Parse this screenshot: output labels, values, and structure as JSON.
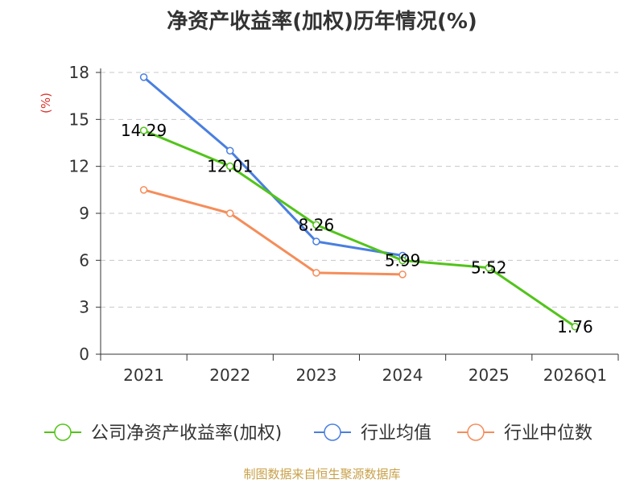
{
  "chart_data": {
    "type": "line",
    "title": "净资产收益率(加权)历年情况(%)",
    "ylabel": "(%)",
    "xlabel": "",
    "ylim": [
      0,
      18
    ],
    "yticks": [
      0,
      3,
      6,
      9,
      12,
      15,
      18
    ],
    "categories": [
      "2021",
      "2022",
      "2023",
      "2024",
      "2025",
      "2026Q1"
    ],
    "legend_position": "bottom",
    "grid": true,
    "series": [
      {
        "name": "公司净资产收益率(加权)",
        "color": "#52c41a",
        "values": [
          14.29,
          12.01,
          8.26,
          5.99,
          5.52,
          1.76
        ],
        "show_labels": true
      },
      {
        "name": "行业均值",
        "color": "#4a7fe0",
        "values": [
          17.7,
          13.0,
          7.2,
          6.3,
          null,
          null
        ],
        "show_labels": false
      },
      {
        "name": "行业中位数",
        "color": "#f58d5a",
        "values": [
          10.5,
          9.0,
          5.2,
          5.1,
          null,
          null
        ],
        "show_labels": false
      }
    ]
  },
  "source": "制图数据来自恒生聚源数据库"
}
